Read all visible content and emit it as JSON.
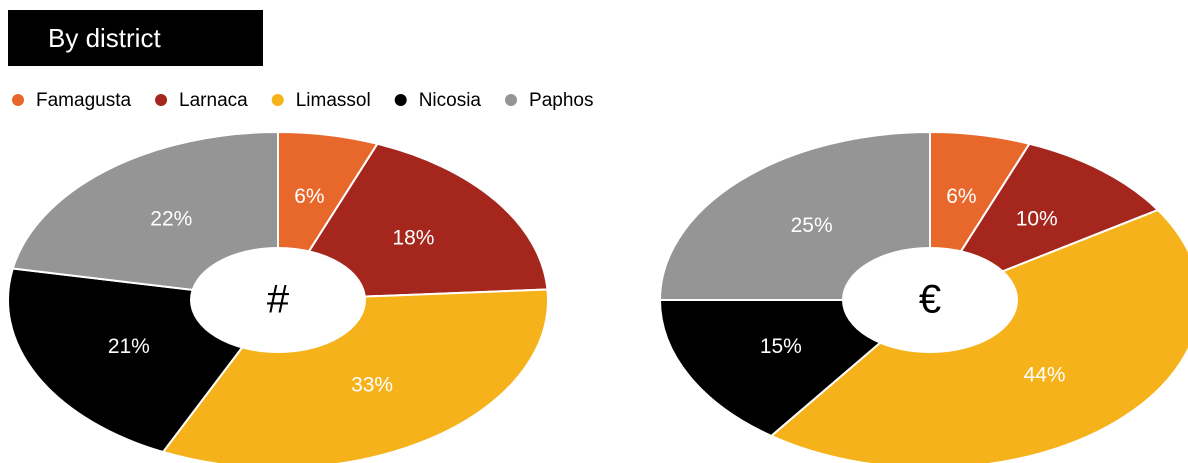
{
  "title": "By district",
  "chart_data": [
    {
      "type": "pie",
      "center_label": "#",
      "categories": [
        "Famagusta",
        "Larnaca",
        "Limassol",
        "Nicosia",
        "Paphos"
      ],
      "colors": [
        "#e8672a",
        "#a5261c",
        "#f5b21b",
        "#000000",
        "#959595"
      ],
      "values": [
        6,
        18,
        33,
        21,
        22
      ],
      "value_labels": [
        "6%",
        "18%",
        "33%",
        "21%",
        "22%"
      ]
    },
    {
      "type": "pie",
      "center_label": "€",
      "values": [
        6,
        10,
        44,
        15,
        25
      ],
      "value_labels": [
        "6%",
        "10%",
        "44%",
        "15%",
        "25%"
      ]
    }
  ]
}
